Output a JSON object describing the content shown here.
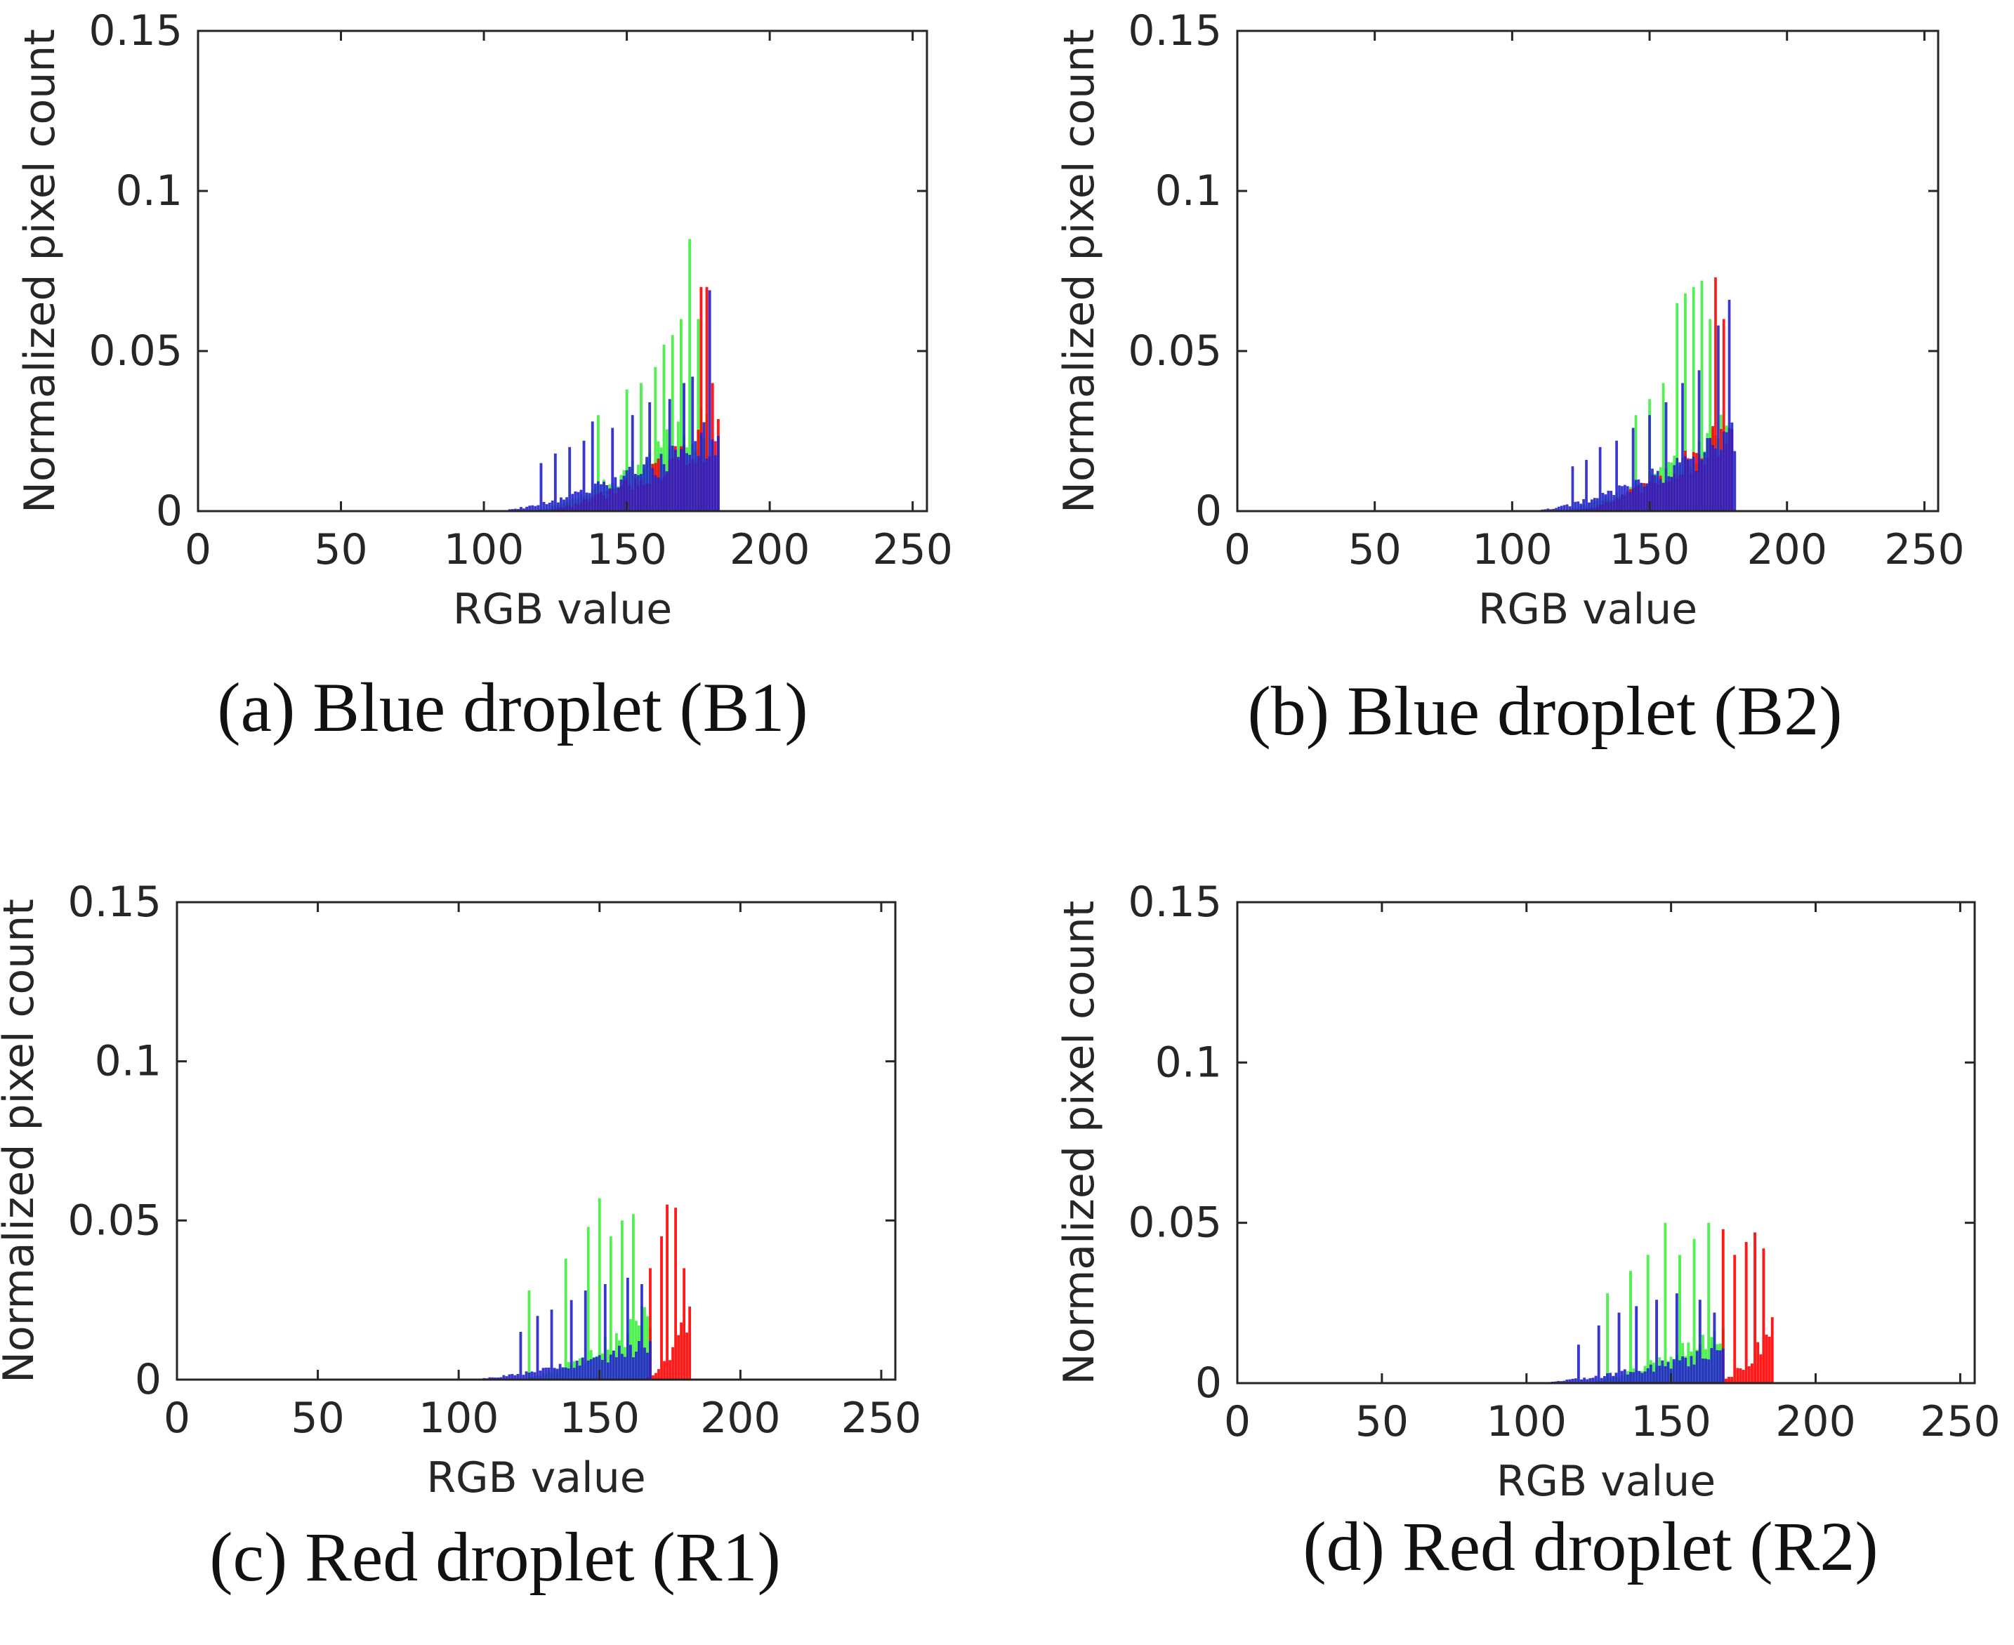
{
  "figure": {
    "colors": {
      "red": "#ff0000",
      "green": "#33ee33",
      "blue": "#2222cc",
      "axis": "#262626"
    }
  },
  "chart_data": [
    {
      "id": "a",
      "type": "bar",
      "caption": "(a) Blue droplet (B1)",
      "xlabel": "RGB value",
      "ylabel": "Normalized pixel count",
      "xlim": [
        0,
        255
      ],
      "ylim": [
        0,
        0.15
      ],
      "xticks": [
        "0",
        "50",
        "100",
        "150",
        "200",
        "250"
      ],
      "yticks": [
        "0",
        "0.05",
        "0.1",
        "0.15"
      ],
      "series": [
        {
          "name": "Green",
          "color": "#33ee33",
          "range": [
            115,
            178
          ],
          "spikes": [
            [
              140,
              0.03
            ],
            [
              150,
              0.038
            ],
            [
              155,
              0.04
            ],
            [
              160,
              0.045
            ],
            [
              163,
              0.052
            ],
            [
              166,
              0.055
            ],
            [
              169,
              0.06
            ],
            [
              172,
              0.085
            ],
            [
              175,
              0.06
            ]
          ]
        },
        {
          "name": "Red",
          "color": "#ff0000",
          "range": [
            118,
            182
          ],
          "spikes": [
            [
              176,
              0.07
            ],
            [
              178,
              0.07
            ],
            [
              180,
              0.04
            ]
          ]
        },
        {
          "name": "Blue",
          "color": "#2222cc",
          "range": [
            102,
            182
          ],
          "spikes": [
            [
              120,
              0.015
            ],
            [
              125,
              0.018
            ],
            [
              130,
              0.02
            ],
            [
              135,
              0.022
            ],
            [
              138,
              0.028
            ],
            [
              145,
              0.026
            ],
            [
              152,
              0.03
            ],
            [
              158,
              0.034
            ],
            [
              165,
              0.035
            ],
            [
              170,
              0.04
            ],
            [
              173,
              0.042
            ],
            [
              179,
              0.069
            ]
          ]
        }
      ]
    },
    {
      "id": "b",
      "type": "bar",
      "caption": "(b) Blue droplet (B2)",
      "xlabel": "RGB value",
      "ylabel": "Normalized pixel count",
      "xlim": [
        0,
        255
      ],
      "ylim": [
        0,
        0.15
      ],
      "xticks": [
        "0",
        "50",
        "100",
        "150",
        "200",
        "250"
      ],
      "yticks": [
        "0",
        "0.05",
        "0.1",
        "0.15"
      ],
      "series": [
        {
          "name": "Green",
          "color": "#33ee33",
          "range": [
            115,
            178
          ],
          "spikes": [
            [
              145,
              0.03
            ],
            [
              150,
              0.035
            ],
            [
              155,
              0.04
            ],
            [
              160,
              0.065
            ],
            [
              163,
              0.068
            ],
            [
              166,
              0.07
            ],
            [
              169,
              0.072
            ],
            [
              172,
              0.06
            ]
          ]
        },
        {
          "name": "Red",
          "color": "#ff0000",
          "range": [
            120,
            180
          ],
          "spikes": [
            [
              174,
              0.073
            ],
            [
              177,
              0.06
            ]
          ]
        },
        {
          "name": "Blue",
          "color": "#2222cc",
          "range": [
            105,
            181
          ],
          "spikes": [
            [
              122,
              0.014
            ],
            [
              127,
              0.016
            ],
            [
              132,
              0.02
            ],
            [
              138,
              0.022
            ],
            [
              144,
              0.026
            ],
            [
              150,
              0.03
            ],
            [
              156,
              0.034
            ],
            [
              162,
              0.04
            ],
            [
              168,
              0.044
            ],
            [
              175,
              0.058
            ],
            [
              179,
              0.066
            ]
          ]
        }
      ]
    },
    {
      "id": "c",
      "type": "bar",
      "caption": "(c) Red droplet (R1)",
      "xlabel": "RGB value",
      "ylabel": "Normalized pixel count",
      "xlim": [
        0,
        255
      ],
      "ylim": [
        0,
        0.15
      ],
      "xticks": [
        "0",
        "50",
        "100",
        "150",
        "200",
        "250"
      ],
      "yticks": [
        "0",
        "0.05",
        "0.1",
        "0.15"
      ],
      "series": [
        {
          "name": "Green",
          "color": "#33ee33",
          "range": [
            120,
            168
          ],
          "spikes": [
            [
              125,
              0.028
            ],
            [
              138,
              0.038
            ],
            [
              146,
              0.048
            ],
            [
              150,
              0.057
            ],
            [
              154,
              0.045
            ],
            [
              158,
              0.05
            ],
            [
              162,
              0.052
            ]
          ]
        },
        {
          "name": "Red",
          "color": "#ff0000",
          "range": [
            165,
            182
          ],
          "spikes": [
            [
              168,
              0.035
            ],
            [
              172,
              0.045
            ],
            [
              174,
              0.055
            ],
            [
              177,
              0.054
            ],
            [
              180,
              0.035
            ]
          ]
        },
        {
          "name": "Blue",
          "color": "#2222cc",
          "range": [
            100,
            168
          ],
          "spikes": [
            [
              122,
              0.015
            ],
            [
              128,
              0.02
            ],
            [
              133,
              0.022
            ],
            [
              140,
              0.025
            ],
            [
              145,
              0.028
            ],
            [
              152,
              0.03
            ],
            [
              160,
              0.032
            ],
            [
              165,
              0.03
            ]
          ]
        }
      ]
    },
    {
      "id": "d",
      "type": "bar",
      "caption": "(d) Red droplet (R2)",
      "xlabel": "RGB value",
      "ylabel": "Normalized pixel count",
      "xlim": [
        0,
        255
      ],
      "ylim": [
        0,
        0.15
      ],
      "xticks": [
        "0",
        "50",
        "100",
        "150",
        "200",
        "250"
      ],
      "yticks": [
        "0",
        "0.05",
        "0.1",
        "0.15"
      ],
      "series": [
        {
          "name": "Green",
          "color": "#33ee33",
          "range": [
            118,
            168
          ],
          "spikes": [
            [
              128,
              0.028
            ],
            [
              136,
              0.035
            ],
            [
              142,
              0.04
            ],
            [
              148,
              0.05
            ],
            [
              153,
              0.04
            ],
            [
              158,
              0.045
            ],
            [
              163,
              0.05
            ]
          ]
        },
        {
          "name": "Red",
          "color": "#ff0000",
          "range": [
            165,
            185
          ],
          "spikes": [
            [
              168,
              0.048
            ],
            [
              172,
              0.04
            ],
            [
              176,
              0.044
            ],
            [
              179,
              0.047
            ],
            [
              182,
              0.042
            ]
          ]
        },
        {
          "name": "Blue",
          "color": "#2222cc",
          "range": [
            98,
            168
          ],
          "spikes": [
            [
              118,
              0.012
            ],
            [
              125,
              0.018
            ],
            [
              132,
              0.022
            ],
            [
              138,
              0.024
            ],
            [
              145,
              0.026
            ],
            [
              152,
              0.028
            ],
            [
              160,
              0.026
            ],
            [
              165,
              0.022
            ]
          ]
        }
      ]
    }
  ]
}
